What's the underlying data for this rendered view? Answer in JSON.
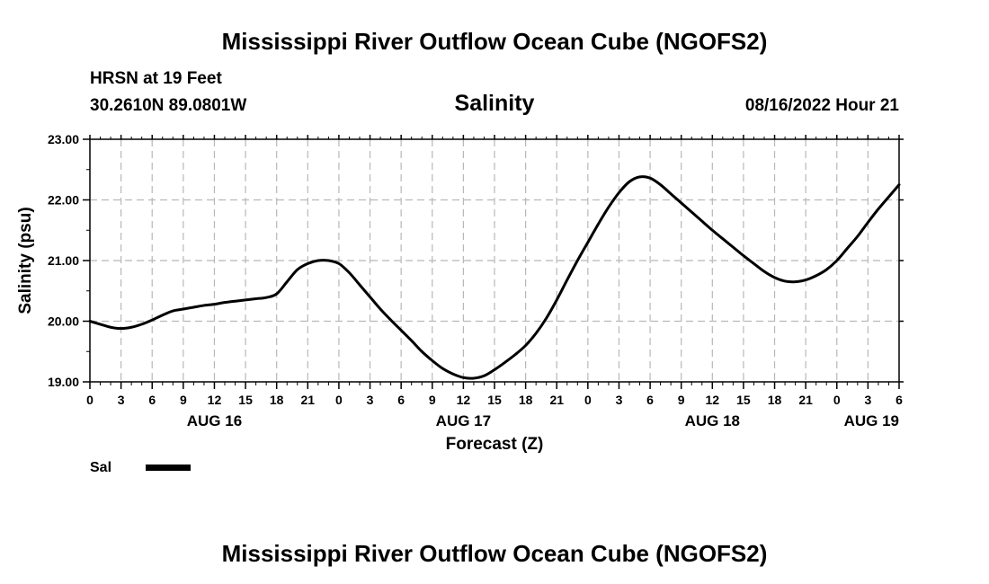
{
  "page": {
    "title": "Mississippi River Outflow Ocean Cube (NGOFS2)",
    "station": "HRSN at 19 Feet",
    "coordinates": "30.2610N  89.0801W",
    "parameter": "Salinity",
    "datetime": "08/16/2022 Hour 21",
    "footer_title": "Mississippi River Outflow Ocean Cube (NGOFS2)"
  },
  "chart_data": {
    "type": "line",
    "title": "Salinity",
    "xlabel": "Forecast (Z)",
    "ylabel": "Salinity (psu)",
    "xlim": [
      0,
      78
    ],
    "ylim": [
      19.0,
      23.0
    ],
    "yticks": [
      "19.00",
      "20.00",
      "21.00",
      "22.00",
      "23.00"
    ],
    "xticks": [
      "0",
      "3",
      "6",
      "9",
      "12",
      "15",
      "18",
      "21",
      "0",
      "3",
      "6",
      "9",
      "12",
      "15",
      "18",
      "21",
      "0",
      "3",
      "6",
      "9",
      "12",
      "15",
      "18",
      "21",
      "0",
      "3",
      "6"
    ],
    "day_labels": [
      {
        "label": "AUG 16",
        "hour": 12
      },
      {
        "label": "AUG 17",
        "hour": 36
      },
      {
        "label": "AUG 18",
        "hour": 60
      },
      {
        "label": "AUG 19",
        "hour": 78
      }
    ],
    "grid": true,
    "legend": {
      "placement": "bottom-left",
      "label": "Sal"
    },
    "series": [
      {
        "name": "Sal",
        "x": [
          0,
          1,
          2,
          3,
          4,
          5,
          6,
          7,
          8,
          9,
          10,
          11,
          12,
          13,
          14,
          15,
          16,
          17,
          18,
          19,
          20,
          21,
          22,
          23,
          24,
          25,
          26,
          27,
          28,
          29,
          30,
          31,
          32,
          33,
          34,
          35,
          36,
          37,
          38,
          39,
          40,
          41,
          42,
          43,
          44,
          45,
          46,
          47,
          48,
          49,
          50,
          51,
          52,
          53,
          54,
          55,
          56,
          57,
          58,
          59,
          60,
          61,
          62,
          63,
          64,
          65,
          66,
          67,
          68,
          69,
          70,
          71,
          72,
          73,
          74,
          75,
          76,
          77,
          78
        ],
        "values": [
          20.0,
          19.95,
          19.9,
          19.88,
          19.9,
          19.95,
          20.02,
          20.1,
          20.17,
          20.2,
          20.23,
          20.26,
          20.28,
          20.31,
          20.33,
          20.35,
          20.37,
          20.39,
          20.45,
          20.65,
          20.85,
          20.95,
          21.0,
          21.0,
          20.95,
          20.8,
          20.6,
          20.4,
          20.2,
          20.02,
          19.85,
          19.68,
          19.5,
          19.35,
          19.22,
          19.13,
          19.07,
          19.06,
          19.1,
          19.2,
          19.32,
          19.45,
          19.6,
          19.8,
          20.05,
          20.35,
          20.68,
          21.0,
          21.3,
          21.6,
          21.88,
          22.12,
          22.3,
          22.38,
          22.36,
          22.25,
          22.1,
          21.95,
          21.8,
          21.65,
          21.5,
          21.36,
          21.22,
          21.08,
          20.95,
          20.82,
          20.72,
          20.66,
          20.65,
          20.68,
          20.75,
          20.85,
          21.0,
          21.2,
          21.4,
          21.63,
          21.85,
          22.05,
          22.25
        ]
      }
    ]
  }
}
